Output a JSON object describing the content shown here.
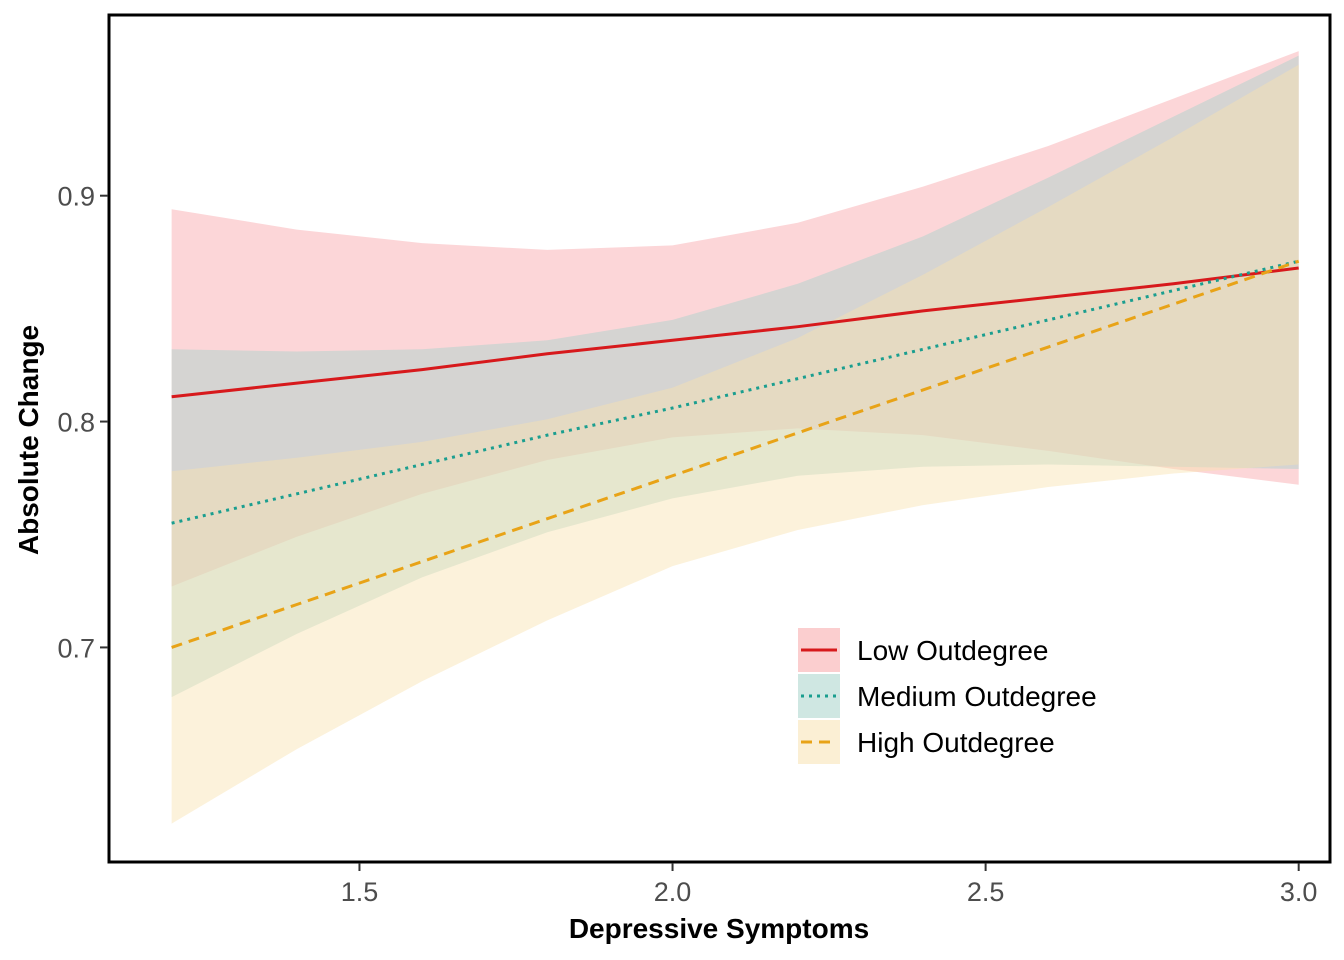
{
  "chart_data": {
    "type": "line",
    "title": "",
    "xlabel": "Depressive Symptoms",
    "ylabel": "Absolute Change",
    "xlim": [
      1.1,
      3.05
    ],
    "ylim": [
      0.605,
      0.98
    ],
    "x_ticks": [
      1.5,
      2.0,
      2.5,
      3.0
    ],
    "x_tick_labels": [
      "1.5",
      "2.0",
      "2.5",
      "3.0"
    ],
    "y_ticks": [
      0.7,
      0.8,
      0.9
    ],
    "y_tick_labels": [
      "0.7",
      "0.8",
      "0.9"
    ],
    "grid": false,
    "legend_position": "bottom-right",
    "series": [
      {
        "name": "Low Outdegree",
        "color": "#d7191c",
        "fill": "#f8a5a8",
        "dash": "solid",
        "x": [
          1.2,
          1.4,
          1.6,
          1.8,
          2.0,
          2.2,
          2.4,
          2.6,
          2.8,
          3.0
        ],
        "y": [
          0.811,
          0.817,
          0.823,
          0.83,
          0.836,
          0.842,
          0.849,
          0.855,
          0.861,
          0.868
        ],
        "lower": [
          0.727,
          0.749,
          0.768,
          0.783,
          0.793,
          0.797,
          0.794,
          0.787,
          0.779,
          0.772
        ],
        "upper": [
          0.894,
          0.885,
          0.879,
          0.876,
          0.878,
          0.888,
          0.904,
          0.922,
          0.943,
          0.964
        ]
      },
      {
        "name": "Medium Outdegree",
        "color": "#1a9e8f",
        "fill": "#a7d3cb",
        "dash": "dotted",
        "x": [
          1.2,
          1.4,
          1.6,
          1.8,
          2.0,
          2.2,
          2.4,
          2.6,
          2.8,
          3.0
        ],
        "y": [
          0.755,
          0.768,
          0.781,
          0.794,
          0.806,
          0.819,
          0.832,
          0.845,
          0.858,
          0.871
        ],
        "lower": [
          0.678,
          0.706,
          0.731,
          0.751,
          0.766,
          0.776,
          0.78,
          0.781,
          0.78,
          0.779
        ],
        "upper": [
          0.832,
          0.831,
          0.832,
          0.836,
          0.845,
          0.861,
          0.882,
          0.908,
          0.935,
          0.962
        ]
      },
      {
        "name": "High Outdegree",
        "color": "#e8a317",
        "fill": "#f8e2b0",
        "dash": "dashed",
        "x": [
          1.2,
          1.4,
          1.6,
          1.8,
          2.0,
          2.2,
          2.4,
          2.6,
          2.8,
          3.0
        ],
        "y": [
          0.7,
          0.719,
          0.738,
          0.757,
          0.776,
          0.795,
          0.814,
          0.833,
          0.852,
          0.871
        ],
        "lower": [
          0.622,
          0.655,
          0.685,
          0.712,
          0.736,
          0.752,
          0.763,
          0.771,
          0.777,
          0.781
        ],
        "upper": [
          0.778,
          0.784,
          0.791,
          0.801,
          0.815,
          0.837,
          0.865,
          0.895,
          0.926,
          0.958
        ]
      }
    ]
  }
}
